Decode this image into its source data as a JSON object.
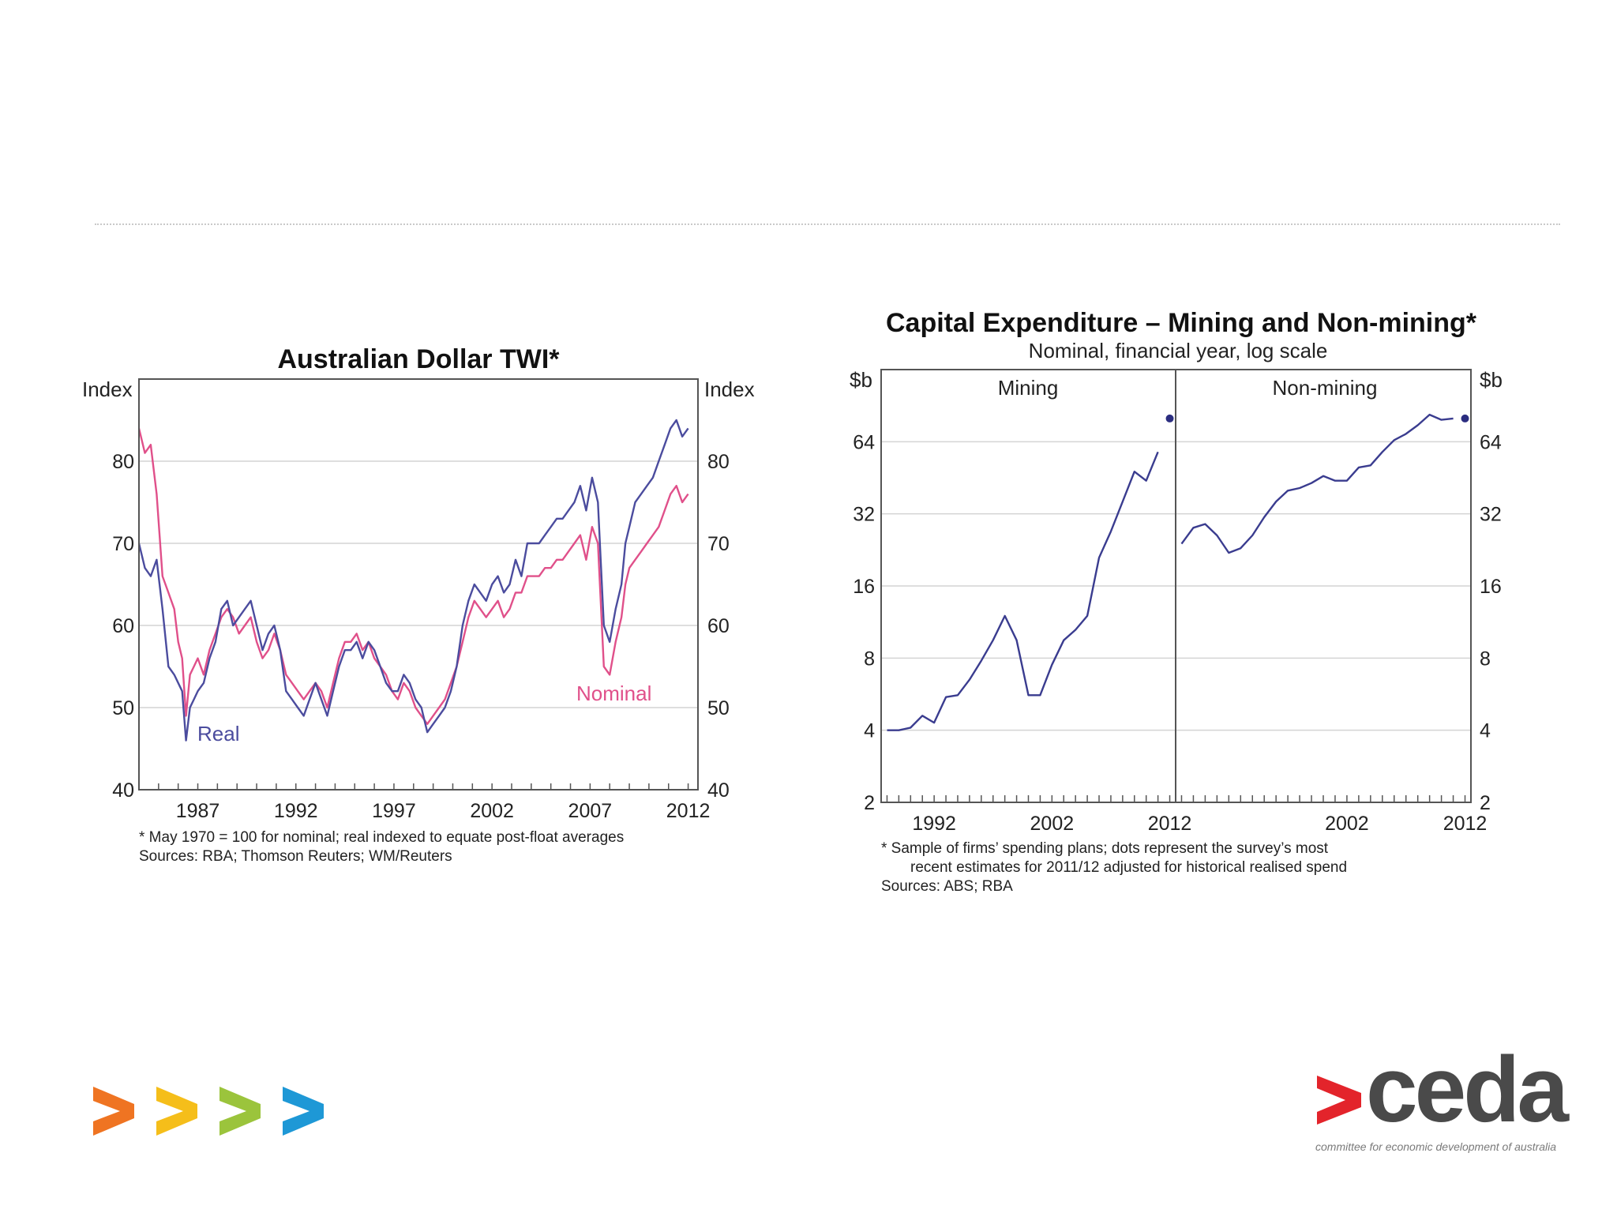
{
  "logos": {
    "ceda_word": "ceda",
    "ceda_tagline": "committee for economic development of australia",
    "arrow_colors": [
      "#ef7422",
      "#f5be1a",
      "#9bc43c",
      "#1e98d6"
    ]
  },
  "chart_data": [
    {
      "type": "line",
      "title": "Australian Dollar TWI*",
      "left_axis_label": "Index",
      "right_axis_label": "Index",
      "ylim": [
        40,
        90
      ],
      "yticks": [
        40,
        50,
        60,
        70,
        80
      ],
      "xlim": [
        1984,
        2012.5
      ],
      "xticks": [
        1987,
        1992,
        1997,
        2002,
        2007,
        2012
      ],
      "note": "*   May 1970 = 100 for nominal; real indexed to equate post-float averages",
      "sources": "Sources: RBA; Thomson Reuters; WM/Reuters",
      "series": [
        {
          "name": "Real",
          "color": "#4b4c9e",
          "x": [
            1984.0,
            1984.3,
            1984.6,
            1984.9,
            1985.2,
            1985.5,
            1985.8,
            1986.0,
            1986.2,
            1986.4,
            1986.6,
            1986.8,
            1987.0,
            1987.3,
            1987.6,
            1987.9,
            1988.2,
            1988.5,
            1988.8,
            1989.1,
            1989.4,
            1989.7,
            1990.0,
            1990.3,
            1990.6,
            1990.9,
            1991.2,
            1991.5,
            1991.8,
            1992.1,
            1992.4,
            1992.7,
            1993.0,
            1993.3,
            1993.6,
            1993.9,
            1994.2,
            1994.5,
            1994.8,
            1995.1,
            1995.4,
            1995.7,
            1996.0,
            1996.3,
            1996.6,
            1996.9,
            1997.2,
            1997.5,
            1997.8,
            1998.1,
            1998.4,
            1998.7,
            1999.0,
            1999.3,
            1999.6,
            1999.9,
            2000.2,
            2000.5,
            2000.8,
            2001.1,
            2001.4,
            2001.7,
            2002.0,
            2002.3,
            2002.6,
            2002.9,
            2003.2,
            2003.5,
            2003.8,
            2004.1,
            2004.4,
            2004.7,
            2005.0,
            2005.3,
            2005.6,
            2005.9,
            2006.2,
            2006.5,
            2006.8,
            2007.1,
            2007.4,
            2007.7,
            2008.0,
            2008.3,
            2008.6,
            2008.8,
            2009.0,
            2009.3,
            2009.6,
            2009.9,
            2010.2,
            2010.5,
            2010.8,
            2011.1,
            2011.4,
            2011.7,
            2012.0
          ],
          "values": [
            70,
            67,
            66,
            68,
            62,
            55,
            54,
            53,
            52,
            46,
            50,
            51,
            52,
            53,
            56,
            58,
            62,
            63,
            60,
            61,
            62,
            63,
            60,
            57,
            59,
            60,
            57,
            52,
            51,
            50,
            49,
            51,
            53,
            51,
            49,
            52,
            55,
            57,
            57,
            58,
            56,
            58,
            57,
            55,
            53,
            52,
            52,
            54,
            53,
            51,
            50,
            47,
            48,
            49,
            50,
            52,
            55,
            60,
            63,
            65,
            64,
            63,
            65,
            66,
            64,
            65,
            68,
            66,
            70,
            70,
            70,
            71,
            72,
            73,
            73,
            74,
            75,
            77,
            74,
            78,
            75,
            60,
            58,
            62,
            65,
            70,
            72,
            75,
            76,
            77,
            78,
            80,
            82,
            84,
            85,
            83,
            84
          ]
        },
        {
          "name": "Nominal",
          "color": "#e0508a",
          "x": [
            1984.0,
            1984.3,
            1984.6,
            1984.9,
            1985.2,
            1985.5,
            1985.8,
            1986.0,
            1986.2,
            1986.4,
            1986.6,
            1986.8,
            1987.0,
            1987.3,
            1987.6,
            1987.9,
            1988.2,
            1988.5,
            1988.8,
            1989.1,
            1989.4,
            1989.7,
            1990.0,
            1990.3,
            1990.6,
            1990.9,
            1991.2,
            1991.5,
            1991.8,
            1992.1,
            1992.4,
            1992.7,
            1993.0,
            1993.3,
            1993.6,
            1993.9,
            1994.2,
            1994.5,
            1994.8,
            1995.1,
            1995.4,
            1995.7,
            1996.0,
            1996.3,
            1996.6,
            1996.9,
            1997.2,
            1997.5,
            1997.8,
            1998.1,
            1998.4,
            1998.7,
            1999.0,
            1999.3,
            1999.6,
            1999.9,
            2000.2,
            2000.5,
            2000.8,
            2001.1,
            2001.4,
            2001.7,
            2002.0,
            2002.3,
            2002.6,
            2002.9,
            2003.2,
            2003.5,
            2003.8,
            2004.1,
            2004.4,
            2004.7,
            2005.0,
            2005.3,
            2005.6,
            2005.9,
            2006.2,
            2006.5,
            2006.8,
            2007.1,
            2007.4,
            2007.7,
            2008.0,
            2008.3,
            2008.6,
            2008.8,
            2009.0,
            2009.3,
            2009.6,
            2009.9,
            2010.2,
            2010.5,
            2010.8,
            2011.1,
            2011.4,
            2011.7,
            2012.0
          ],
          "values": [
            84,
            81,
            82,
            76,
            66,
            64,
            62,
            58,
            56,
            49,
            54,
            55,
            56,
            54,
            57,
            59,
            61,
            62,
            61,
            59,
            60,
            61,
            58,
            56,
            57,
            59,
            57,
            54,
            53,
            52,
            51,
            52,
            53,
            52,
            50,
            53,
            56,
            58,
            58,
            59,
            57,
            58,
            56,
            55,
            54,
            52,
            51,
            53,
            52,
            50,
            49,
            48,
            49,
            50,
            51,
            53,
            55,
            58,
            61,
            63,
            62,
            61,
            62,
            63,
            61,
            62,
            64,
            64,
            66,
            66,
            66,
            67,
            67,
            68,
            68,
            69,
            70,
            71,
            68,
            72,
            70,
            55,
            54,
            58,
            61,
            65,
            67,
            68,
            69,
            70,
            71,
            72,
            74,
            76,
            77,
            75,
            76
          ]
        }
      ]
    },
    {
      "type": "line",
      "title": "Capital Expenditure – Mining and Non-mining*",
      "subtitle": "Nominal, financial year, log scale",
      "left_axis_label": "$b",
      "right_axis_label": "$b",
      "scale": "log2",
      "ylim": [
        2,
        128
      ],
      "yticks": [
        2,
        4,
        8,
        16,
        32,
        64
      ],
      "note_line1": "*   Sample of firms’ spending plans; dots represent the survey’s most",
      "note_line2": "recent estimates for 2011/12 adjusted for historical realised spend",
      "sources": "Sources: ABS; RBA",
      "panels": [
        {
          "name": "Mining",
          "xlim": [
            1987.5,
            2012.5
          ],
          "xticks": [
            1992,
            2002,
            2012
          ],
          "line_x": [
            1988,
            1989,
            1990,
            1991,
            1992,
            1993,
            1994,
            1995,
            1996,
            1997,
            1998,
            1999,
            2000,
            2001,
            2002,
            2003,
            2004,
            2005,
            2006,
            2007,
            2008,
            2009,
            2010,
            2011
          ],
          "line_values": [
            4.0,
            4.0,
            4.1,
            4.6,
            4.3,
            5.5,
            5.6,
            6.5,
            7.8,
            9.5,
            12.0,
            9.5,
            5.6,
            5.6,
            7.5,
            9.5,
            10.5,
            12.0,
            21.0,
            27.0,
            36.0,
            48.0,
            44.0,
            58.0
          ],
          "dot_x": 2012,
          "dot_value": 80
        },
        {
          "name": "Non-mining",
          "xlim": [
            1987.5,
            2012.5
          ],
          "xticks": [
            2002,
            2012
          ],
          "line_x": [
            1988,
            1989,
            1990,
            1991,
            1992,
            1993,
            1994,
            1995,
            1996,
            1997,
            1998,
            1999,
            2000,
            2001,
            2002,
            2003,
            2004,
            2005,
            2006,
            2007,
            2008,
            2009,
            2010,
            2011
          ],
          "line_values": [
            24,
            28,
            29,
            26,
            22,
            23,
            26,
            31,
            36,
            40,
            41,
            43,
            46,
            44,
            44,
            50,
            51,
            58,
            65,
            69,
            75,
            83,
            79,
            80
          ],
          "dot_x": 2012,
          "dot_value": 80
        }
      ]
    }
  ]
}
